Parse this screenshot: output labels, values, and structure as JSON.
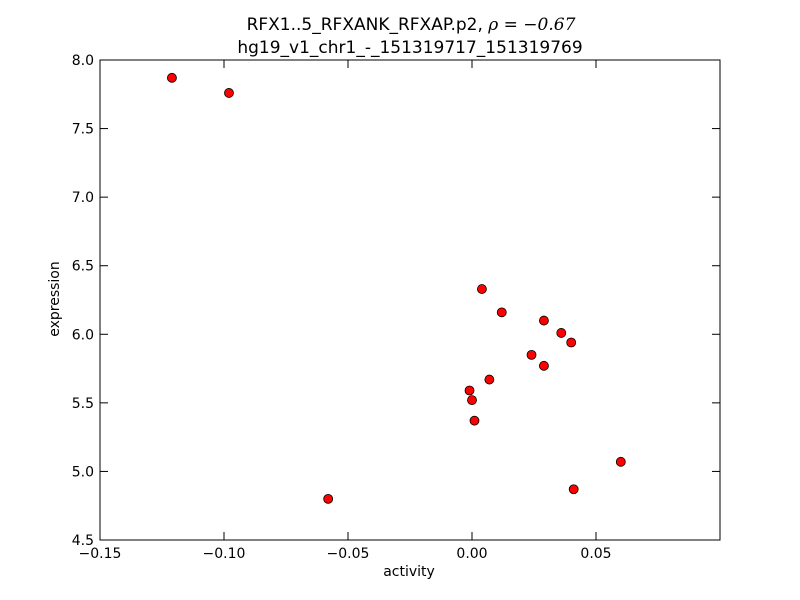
{
  "chart_data": {
    "type": "scatter",
    "title_prefix": "RFX1..5_RFXANK_RFXAP.p2, ",
    "title_stat": "ρ = −0.67",
    "subtitle": "hg19_v1_chr1_-_151319717_151319769",
    "xlabel": "activity",
    "ylabel": "expression",
    "xlim": [
      -0.15,
      0.1
    ],
    "ylim": [
      4.5,
      8.0
    ],
    "xticks": [
      -0.15,
      -0.1,
      -0.05,
      0.0,
      0.05
    ],
    "xtick_labels": [
      "−0.15",
      "−0.10",
      "−0.05",
      "0.00",
      "0.05"
    ],
    "yticks": [
      4.5,
      5.0,
      5.5,
      6.0,
      6.5,
      7.0,
      7.5,
      8.0
    ],
    "ytick_labels": [
      "4.5",
      "5.0",
      "5.5",
      "6.0",
      "6.5",
      "7.0",
      "7.5",
      "8.0"
    ],
    "grid": false,
    "marker_color": "#ff0000",
    "marker_edge": "#000000",
    "points": [
      {
        "x": -0.121,
        "y": 7.87
      },
      {
        "x": -0.098,
        "y": 7.76
      },
      {
        "x": -0.058,
        "y": 4.8
      },
      {
        "x": 0.004,
        "y": 6.33
      },
      {
        "x": 0.012,
        "y": 6.16
      },
      {
        "x": 0.029,
        "y": 6.1
      },
      {
        "x": 0.036,
        "y": 6.01
      },
      {
        "x": 0.04,
        "y": 5.94
      },
      {
        "x": 0.024,
        "y": 5.85
      },
      {
        "x": 0.029,
        "y": 5.77
      },
      {
        "x": 0.007,
        "y": 5.67
      },
      {
        "x": -0.001,
        "y": 5.59
      },
      {
        "x": 0.0,
        "y": 5.52
      },
      {
        "x": 0.001,
        "y": 5.37
      },
      {
        "x": 0.06,
        "y": 5.07
      },
      {
        "x": 0.041,
        "y": 4.87
      }
    ]
  }
}
